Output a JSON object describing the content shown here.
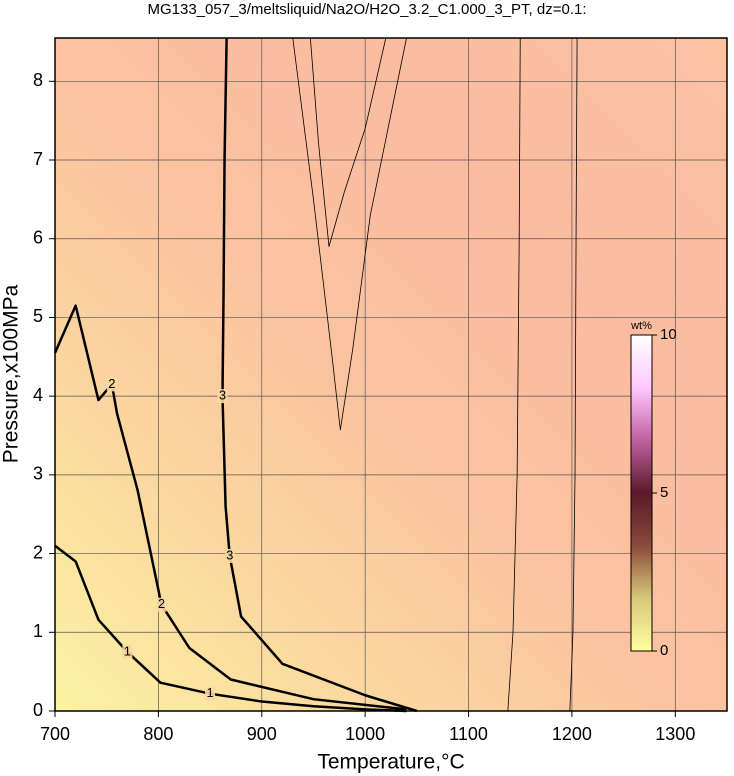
{
  "chart_data": {
    "type": "contour",
    "title": "MG133_057_3/meltsliquid/Na2O/H2O_3.2_C1.000_3_PT, dz=0.1:",
    "x_label": "Temperature,°C",
    "y_label": "Pressure,x100MPa",
    "xlim": [
      700,
      1350
    ],
    "ylim": [
      0,
      8.55
    ],
    "xticks": [
      700,
      800,
      900,
      1000,
      1100,
      1200,
      1300
    ],
    "yticks": [
      0,
      1,
      2,
      3,
      4,
      5,
      6,
      7,
      8
    ],
    "grid": true,
    "series": [
      {
        "name": "1",
        "color": "#000000",
        "line_width": 2.5,
        "x": [
          700,
          720,
          742,
          770,
          802,
          850,
          900,
          950,
          1000,
          1040
        ],
        "y": [
          2.1,
          1.9,
          1.16,
          0.75,
          0.36,
          0.22,
          0.12,
          0.06,
          0.02,
          0
        ]
      },
      {
        "name": "2",
        "color": "#000000",
        "line_width": 2.5,
        "x": [
          700,
          720,
          742,
          755,
          760,
          780,
          803,
          830,
          870,
          950,
          1040
        ],
        "y": [
          4.55,
          5.15,
          3.95,
          4.15,
          3.78,
          2.8,
          1.35,
          0.8,
          0.4,
          0.15,
          0.02
        ]
      },
      {
        "name": "3",
        "color": "#000000",
        "line_width": 2.5,
        "x": [
          866,
          864,
          863,
          862,
          865,
          869,
          880,
          920,
          1000,
          1050
        ],
        "y": [
          8.55,
          7.0,
          5.27,
          4.0,
          2.6,
          1.97,
          1.2,
          0.6,
          0.2,
          0
        ]
      },
      {
        "color": "#000000",
        "line_width": 0.8,
        "x": [
          947,
          955,
          965,
          980,
          1000,
          1020
        ],
        "y": [
          8.55,
          7.2,
          5.9,
          6.6,
          7.4,
          8.55
        ]
      },
      {
        "color": "#000000",
        "line_width": 0.8,
        "x": [
          930,
          950,
          968,
          976,
          988,
          1005,
          1040
        ],
        "y": [
          8.55,
          6.5,
          4.5,
          3.57,
          4.6,
          6.3,
          8.55
        ]
      },
      {
        "color": "#000000",
        "line_width": 0.8,
        "x": [
          1150,
          1149,
          1147,
          1143,
          1138
        ],
        "y": [
          8.55,
          6.0,
          3.0,
          1.0,
          0
        ]
      },
      {
        "color": "#000000",
        "line_width": 0.8,
        "x": [
          1205,
          1204,
          1203,
          1201,
          1198
        ],
        "y": [
          8.55,
          6.0,
          3.0,
          1.0,
          0
        ]
      }
    ],
    "colorbar": {
      "label": "wt%",
      "lim": [
        0,
        10
      ],
      "ticks": [
        0,
        5,
        10
      ],
      "colors": [
        "#ffffa0",
        "#d8c87c",
        "#8a4a3c",
        "#5a1a2a",
        "#c060a0",
        "#ffc8ff",
        "#ffffff"
      ]
    }
  }
}
